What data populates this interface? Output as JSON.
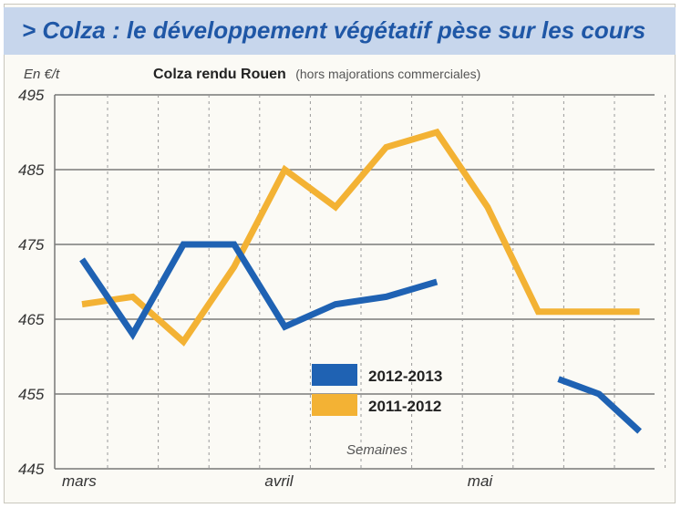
{
  "banner": {
    "title": "> Colza : le développement végétatif pèse sur les cours"
  },
  "chart_data": {
    "type": "line",
    "title": "Colza rendu Rouen",
    "subtitle": "(hors majorations commerciales)",
    "ylabel": "En €/t",
    "xlabel": "Semaines",
    "ylim": [
      445,
      495
    ],
    "yticks": [
      495,
      485,
      475,
      465,
      455,
      445
    ],
    "x_tick_labels": [
      {
        "label": "mars",
        "week": 0
      },
      {
        "label": "avril",
        "week": 4
      },
      {
        "label": "mai",
        "week": 8
      }
    ],
    "grid": true,
    "legend_position": "center-bottom",
    "series": [
      {
        "name": "2012-2013",
        "color": "#1f62b3",
        "segments": [
          [
            [
              0,
              473
            ],
            [
              1,
              463
            ],
            [
              2,
              475
            ],
            [
              3,
              475
            ],
            [
              4,
              464
            ],
            [
              5,
              467
            ],
            [
              6,
              468
            ],
            [
              7,
              470
            ]
          ],
          [
            [
              9.4,
              457
            ],
            [
              10.2,
              455
            ],
            [
              11,
              450
            ]
          ]
        ]
      },
      {
        "name": "2011-2012",
        "color": "#f3b234",
        "segments": [
          [
            [
              0,
              467
            ],
            [
              1,
              468
            ],
            [
              2,
              462
            ],
            [
              3,
              472
            ],
            [
              4,
              485
            ],
            [
              5,
              480
            ],
            [
              6,
              488
            ],
            [
              7,
              490
            ],
            [
              8,
              480
            ],
            [
              9,
              466
            ],
            [
              10,
              466
            ],
            [
              11,
              466
            ]
          ]
        ]
      }
    ]
  }
}
